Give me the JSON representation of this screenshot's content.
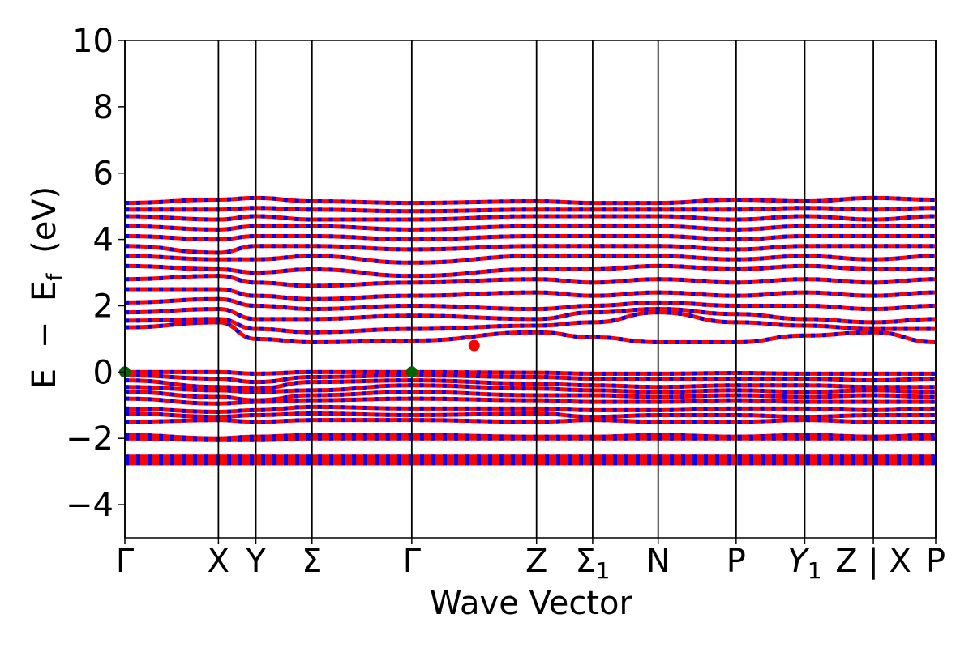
{
  "chart_data": {
    "type": "line",
    "xlabel": "Wave Vector",
    "ylabel_parts": {
      "E": "E",
      "minus": "−",
      "Ef_base": "E",
      "Ef_sub": "f",
      "unit": "(eV)"
    },
    "ylim": [
      -5,
      10
    ],
    "xlim": [
      0,
      2.6
    ],
    "yticks": [
      {
        "value": -4,
        "label": "−4"
      },
      {
        "value": -2,
        "label": "−2"
      },
      {
        "value": 0,
        "label": "0"
      },
      {
        "value": 2,
        "label": "2"
      },
      {
        "value": 4,
        "label": "4"
      },
      {
        "value": 6,
        "label": "6"
      },
      {
        "value": 8,
        "label": "8"
      },
      {
        "value": 10,
        "label": "10"
      }
    ],
    "kpoints": [
      {
        "x": 0.0,
        "label": "Γ",
        "sub": ""
      },
      {
        "x": 0.3,
        "label": "X",
        "sub": ""
      },
      {
        "x": 0.42,
        "label": "Y",
        "sub": ""
      },
      {
        "x": 0.6,
        "label": "Σ",
        "sub": ""
      },
      {
        "x": 0.92,
        "label": "Γ",
        "sub": ""
      },
      {
        "x": 1.32,
        "label": "Z",
        "sub": ""
      },
      {
        "x": 1.5,
        "label": "Σ",
        "sub": "1"
      },
      {
        "x": 1.71,
        "label": "N",
        "sub": ""
      },
      {
        "x": 1.96,
        "label": "P",
        "sub": ""
      },
      {
        "x": 2.18,
        "label": "Y",
        "sub": "1",
        "italic": true
      },
      {
        "x": 2.4,
        "label": "Z | X",
        "sub": ""
      },
      {
        "x": 2.6,
        "label": "P",
        "sub": ""
      }
    ],
    "series": [
      {
        "color": "#ff0000",
        "dash_color": "#0000ff"
      }
    ],
    "vbm": [
      {
        "x": 0.0,
        "y": 0.0
      },
      {
        "x": 0.92,
        "y": 0.0
      }
    ],
    "cbm": [
      {
        "x": 1.12,
        "y": 0.8
      }
    ],
    "vbm_color": "#006400",
    "cbm_color": "#ff0000",
    "bands": {
      "valence": [
        [
          0.0,
          0.0,
          -0.05,
          0.0,
          0.0,
          -0.02,
          -0.05,
          -0.05,
          -0.03,
          -0.05,
          -0.05,
          -0.05
        ],
        [
          -0.1,
          -0.2,
          -0.3,
          -0.15,
          -0.1,
          -0.15,
          -0.2,
          -0.2,
          -0.2,
          -0.2,
          -0.25,
          -0.2
        ],
        [
          -0.25,
          -0.45,
          -0.5,
          -0.3,
          -0.25,
          -0.35,
          -0.4,
          -0.45,
          -0.4,
          -0.4,
          -0.45,
          -0.45
        ],
        [
          -0.45,
          -0.55,
          -0.6,
          -0.55,
          -0.4,
          -0.5,
          -0.55,
          -0.6,
          -0.55,
          -0.6,
          -0.55,
          -0.6
        ],
        [
          -0.6,
          -0.75,
          -0.85,
          -0.7,
          -0.6,
          -0.7,
          -0.7,
          -0.75,
          -0.7,
          -0.75,
          -0.7,
          -0.75
        ],
        [
          -0.8,
          -0.95,
          -0.9,
          -0.85,
          -0.8,
          -0.85,
          -0.9,
          -0.9,
          -0.85,
          -0.9,
          -0.9,
          -0.9
        ],
        [
          -1.1,
          -1.2,
          -1.15,
          -1.05,
          -1.1,
          -1.1,
          -1.15,
          -1.15,
          -1.1,
          -1.1,
          -1.15,
          -1.1
        ],
        [
          -1.25,
          -1.35,
          -1.3,
          -1.25,
          -1.3,
          -1.25,
          -1.35,
          -1.3,
          -1.3,
          -1.35,
          -1.3,
          -1.3
        ],
        [
          -1.5,
          -1.45,
          -1.5,
          -1.45,
          -1.45,
          -1.5,
          -1.45,
          -1.5,
          -1.5,
          -1.45,
          -1.5,
          -1.5
        ],
        [
          -1.9,
          -2.0,
          -1.95,
          -1.9,
          -1.9,
          -1.95,
          -1.95,
          -1.9,
          -1.95,
          -1.9,
          -1.95,
          -1.9
        ],
        [
          -2.0,
          -2.05,
          -2.05,
          -2.0,
          -2.0,
          -2.0,
          -2.0,
          -2.0,
          -2.0,
          -2.0,
          -2.0,
          -2.0
        ],
        [
          -2.55,
          -2.55,
          -2.55,
          -2.55,
          -2.55,
          -2.55,
          -2.55,
          -2.55,
          -2.55,
          -2.55,
          -2.55,
          -2.55
        ],
        [
          -2.65,
          -2.65,
          -2.65,
          -2.65,
          -2.65,
          -2.65,
          -2.65,
          -2.65,
          -2.65,
          -2.65,
          -2.65,
          -2.65
        ],
        [
          -2.75,
          -2.75,
          -2.75,
          -2.75,
          -2.75,
          -2.75,
          -2.75,
          -2.75,
          -2.75,
          -2.75,
          -2.75,
          -2.75
        ]
      ],
      "conduction": [
        [
          1.35,
          1.5,
          1.0,
          0.9,
          0.95,
          1.2,
          1.05,
          0.9,
          0.9,
          1.1,
          1.2,
          0.9
        ],
        [
          1.55,
          1.6,
          1.3,
          1.2,
          1.3,
          1.4,
          1.5,
          1.8,
          1.5,
          1.4,
          1.3,
          1.3
        ],
        [
          1.8,
          1.9,
          1.6,
          1.6,
          1.7,
          1.6,
          1.8,
          1.9,
          1.75,
          1.6,
          1.5,
          1.6
        ],
        [
          2.1,
          2.2,
          2.0,
          1.9,
          2.0,
          1.9,
          2.0,
          2.1,
          2.0,
          2.0,
          1.9,
          2.0
        ],
        [
          2.5,
          2.5,
          2.3,
          2.2,
          2.3,
          2.4,
          2.3,
          2.4,
          2.3,
          2.4,
          2.3,
          2.4
        ],
        [
          2.8,
          2.9,
          2.7,
          2.6,
          2.7,
          2.8,
          2.7,
          2.8,
          2.7,
          2.8,
          2.7,
          2.8
        ],
        [
          3.2,
          3.1,
          3.0,
          3.1,
          2.9,
          3.1,
          3.1,
          3.2,
          3.1,
          3.2,
          3.1,
          3.1
        ],
        [
          3.5,
          3.4,
          3.4,
          3.5,
          3.3,
          3.5,
          3.5,
          3.5,
          3.4,
          3.5,
          3.4,
          3.5
        ],
        [
          3.8,
          3.6,
          3.8,
          3.8,
          3.7,
          3.8,
          3.8,
          3.8,
          3.7,
          3.8,
          3.8,
          3.8
        ],
        [
          4.1,
          4.0,
          4.1,
          4.1,
          4.0,
          4.1,
          4.1,
          4.1,
          4.0,
          4.1,
          4.1,
          4.1
        ],
        [
          4.4,
          4.3,
          4.4,
          4.4,
          4.3,
          4.4,
          4.4,
          4.4,
          4.3,
          4.4,
          4.4,
          4.4
        ],
        [
          4.7,
          4.6,
          4.7,
          4.6,
          4.6,
          4.7,
          4.7,
          4.7,
          4.6,
          4.7,
          4.6,
          4.7
        ],
        [
          4.9,
          4.9,
          4.95,
          4.9,
          4.85,
          4.9,
          4.9,
          4.9,
          4.9,
          4.95,
          4.9,
          4.95
        ],
        [
          5.1,
          5.2,
          5.25,
          5.15,
          5.1,
          5.15,
          5.1,
          5.1,
          5.2,
          5.15,
          5.25,
          5.2
        ]
      ]
    }
  }
}
